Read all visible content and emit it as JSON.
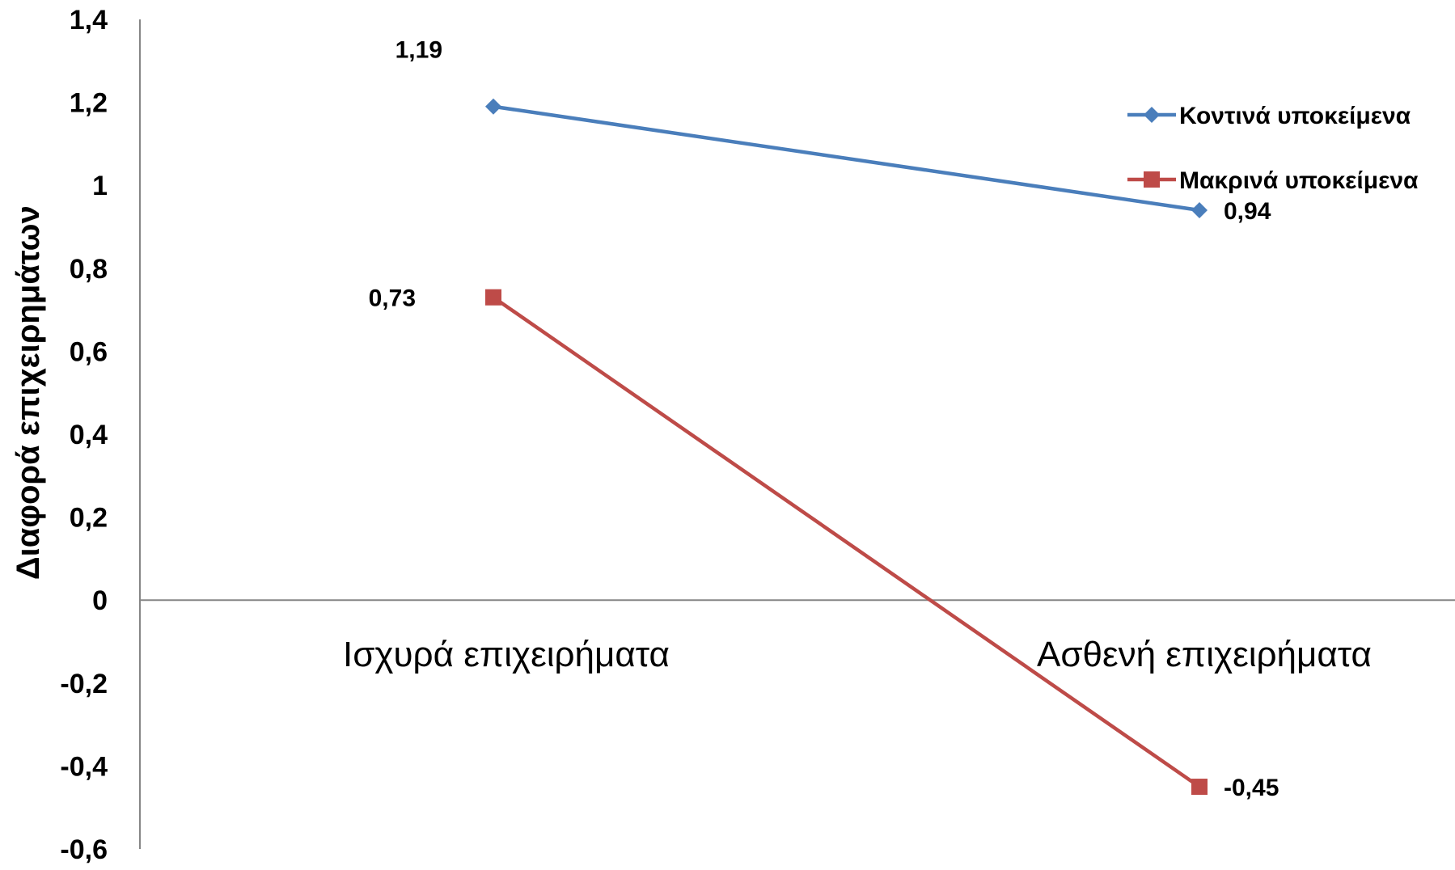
{
  "chart_data": {
    "type": "line",
    "title": "",
    "xlabel": "",
    "ylabel": "Διαφορά επιχειρημάτων",
    "categories": [
      "Ισχυρά επιχειρήματα",
      "Ασθενή επιχειρήματα"
    ],
    "ylim": [
      -0.6,
      1.4
    ],
    "yticks": [
      "1,4",
      "1,2",
      "1",
      "0,8",
      "0,6",
      "0,4",
      "0,2",
      "0",
      "-0,2",
      "-0,4",
      "-0,6"
    ],
    "ytick_values": [
      1.4,
      1.2,
      1.0,
      0.8,
      0.6,
      0.4,
      0.2,
      0.0,
      -0.2,
      -0.4,
      -0.6
    ],
    "grid": false,
    "legend_position": "right",
    "series": [
      {
        "name": "Κοντινά υποκείμενα",
        "values": [
          1.19,
          0.94
        ],
        "labels": [
          "1,19",
          "0,94"
        ],
        "color": "#4a7ebb",
        "marker": "diamond"
      },
      {
        "name": "Μακρινά υποκείμενα",
        "values": [
          0.73,
          -0.45
        ],
        "labels": [
          "0,73",
          "-0,45"
        ],
        "color": "#be4b48",
        "marker": "square"
      }
    ]
  }
}
